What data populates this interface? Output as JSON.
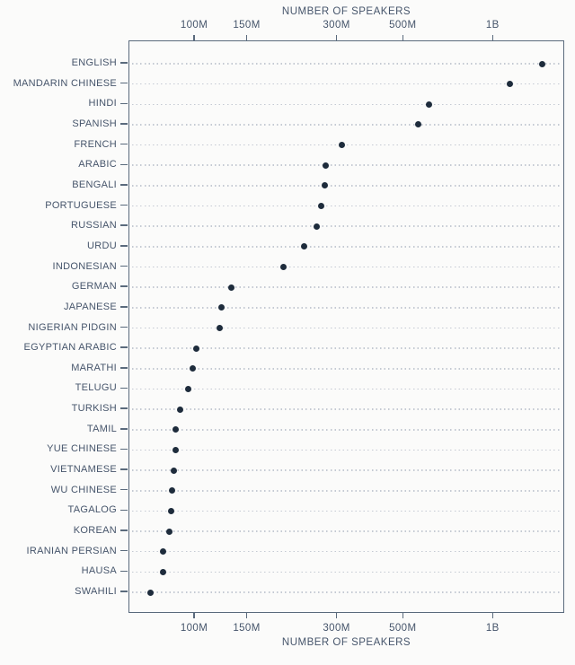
{
  "chart_data": {
    "type": "scatter",
    "variant": "horizontal-dot-plot",
    "top_axis_label": "NUMBER OF SPEAKERS",
    "bottom_axis_label": "NUMBER OF SPEAKERS",
    "x_scale": "log",
    "x_unit": "speakers",
    "x_domain_millions": [
      60,
      1740
    ],
    "grid": "dotted-row-leader-lines",
    "legend": "none",
    "x_ticks": [
      {
        "value_millions": 100,
        "label": "100M"
      },
      {
        "value_millions": 150,
        "label": "150M"
      },
      {
        "value_millions": 300,
        "label": "300M"
      },
      {
        "value_millions": 500,
        "label": "500M"
      },
      {
        "value_millions": 1000,
        "label": "1B"
      }
    ],
    "categories": [
      "ENGLISH",
      "MANDARIN CHINESE",
      "HINDI",
      "SPANISH",
      "FRENCH",
      "ARABIC",
      "BENGALI",
      "PORTUGUESE",
      "RUSSIAN",
      "URDU",
      "INDONESIAN",
      "GERMAN",
      "JAPANESE",
      "NIGERIAN PIDGIN",
      "EGYPTIAN ARABIC",
      "MARATHI",
      "TELUGU",
      "TURKISH",
      "TAMIL",
      "YUE CHINESE",
      "VIETNAMESE",
      "WU CHINESE",
      "TAGALOG",
      "KOREAN",
      "IRANIAN PERSIAN",
      "HAUSA",
      "SWAHILI"
    ],
    "values_millions": [
      1456,
      1138,
      610,
      559,
      310,
      274,
      273,
      264,
      255,
      232,
      198,
      132,
      123,
      121,
      101,
      98,
      95,
      89,
      86,
      86,
      85,
      84,
      83,
      82,
      78,
      78,
      71
    ]
  },
  "colors": {
    "dot": "#1e2c3c",
    "axis": "#5a6a7c",
    "text": "#46556b",
    "leader": "#c4cad3",
    "background": "#fbfbfa"
  }
}
